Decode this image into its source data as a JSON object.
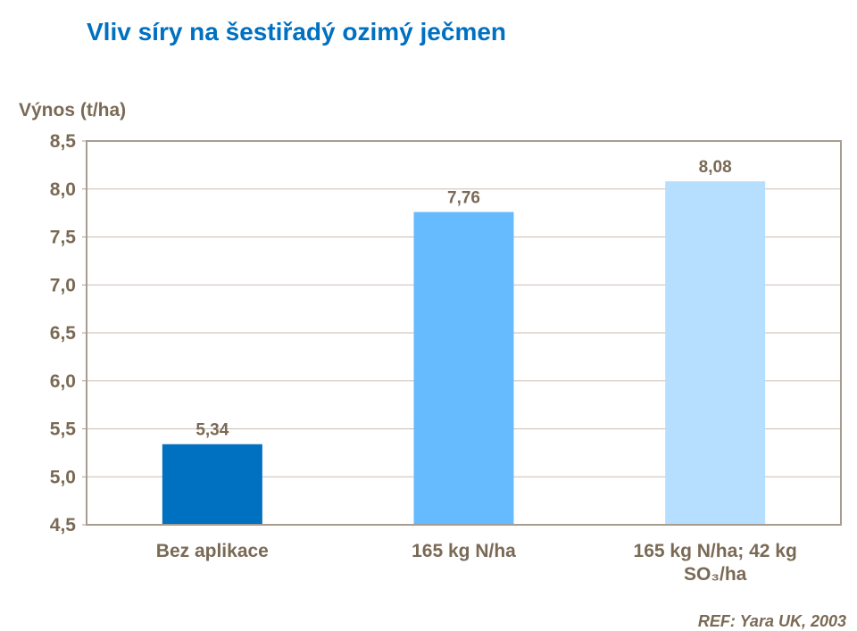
{
  "chart_data": {
    "type": "bar",
    "title": "Vliv síry na šestiřadý ozimý ječmen",
    "ylabel": "Výnos (t/ha)",
    "xlabel": "",
    "categories": [
      "Bez aplikace",
      "165 kg N/ha",
      "165 kg N/ha; 42 kg SO₃/ha"
    ],
    "values": [
      5.34,
      7.76,
      8.08
    ],
    "data_labels": [
      "5,34",
      "7,76",
      "8,08"
    ],
    "colors": [
      "#0070C0",
      "#66BBFF",
      "#B6DFFF"
    ],
    "ylim": [
      4.5,
      8.5
    ],
    "yticks": [
      4.5,
      5.0,
      5.5,
      6.0,
      6.5,
      7.0,
      7.5,
      8.0,
      8.5
    ],
    "ytick_labels": [
      "4,5",
      "5,0",
      "5,5",
      "6,0",
      "6,5",
      "7,0",
      "7,5",
      "8,0",
      "8,5"
    ],
    "grid": true,
    "legend": "none"
  },
  "reference": "REF: Yara UK, 2003"
}
